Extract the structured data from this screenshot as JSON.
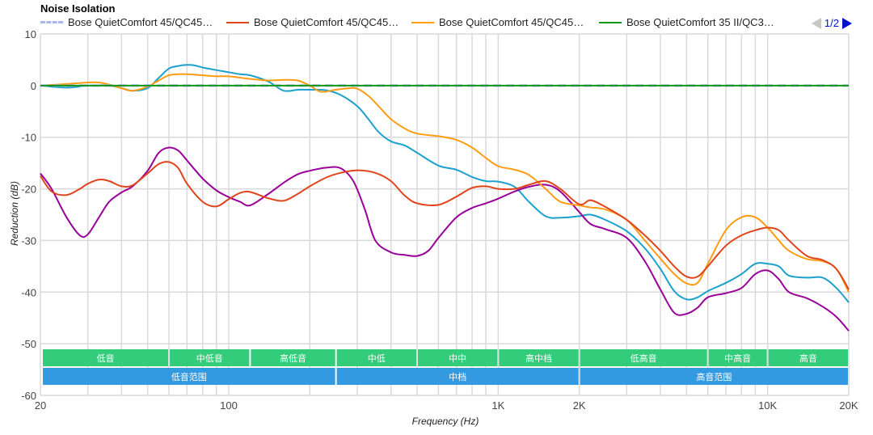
{
  "chart_data": {
    "type": "line",
    "title": "Noise Isolation",
    "xlabel": "Frequency (Hz)",
    "ylabel": "Reduction (dB)",
    "xscale": "log",
    "xlim": [
      20,
      20000
    ],
    "ylim": [
      -60,
      10
    ],
    "grid": true,
    "legend_position": "top",
    "y_ticks": [
      10,
      0,
      -10,
      -20,
      -30,
      -40,
      -50,
      -60
    ],
    "y_tick_labels": [
      "10",
      "0",
      "-10",
      "-20",
      "-30",
      "-40",
      "-50",
      "-60"
    ],
    "x_ticks": [
      20,
      100,
      1000,
      2000,
      10000,
      20000
    ],
    "x_tick_labels": [
      "20",
      "100",
      "1K",
      "2K",
      "10K",
      "20K"
    ],
    "x_gridlines": [
      20,
      30,
      40,
      50,
      60,
      70,
      80,
      90,
      100,
      200,
      300,
      400,
      500,
      600,
      700,
      800,
      900,
      1000,
      2000,
      3000,
      4000,
      5000,
      6000,
      7000,
      8000,
      9000,
      10000,
      20000
    ],
    "pager": {
      "label": "1/2",
      "page": 1,
      "pages": 2
    },
    "series": [
      {
        "name": "Bose QuietComfort 45/QC45…",
        "color": "#aab8f0",
        "dashed": true,
        "x": [
          20,
          20000
        ],
        "y": [
          0,
          0
        ]
      },
      {
        "name": "Bose QuietComfort 45/QC45…",
        "color": "#e0441a",
        "dashed": false,
        "x": [
          20,
          22,
          25,
          28,
          30,
          33,
          36,
          40,
          44,
          50,
          55,
          60,
          65,
          70,
          80,
          90,
          100,
          110,
          120,
          140,
          160,
          180,
          200,
          230,
          260,
          300,
          350,
          400,
          450,
          500,
          600,
          700,
          800,
          900,
          1000,
          1150,
          1300,
          1500,
          1700,
          2000,
          2200,
          2500,
          3000,
          3500,
          4000,
          4500,
          5000,
          5500,
          6000,
          7000,
          8000,
          9000,
          10000,
          11000,
          12000,
          14000,
          16000,
          18000,
          20000
        ],
        "y": [
          -17.5,
          -20.5,
          -21.2,
          -20,
          -19,
          -18.2,
          -18.5,
          -19.5,
          -19.3,
          -17,
          -15.2,
          -14.8,
          -16,
          -19,
          -22.5,
          -23.4,
          -22,
          -20.8,
          -20.6,
          -21.8,
          -22.3,
          -21,
          -19.5,
          -17.8,
          -16.9,
          -16.4,
          -16.9,
          -18.5,
          -21.3,
          -22.8,
          -23.1,
          -21.5,
          -19.8,
          -19.5,
          -20,
          -20,
          -19.2,
          -18.5,
          -20,
          -23,
          -22.2,
          -23.5,
          -26,
          -29,
          -32,
          -35,
          -37,
          -37,
          -35,
          -31,
          -29,
          -28,
          -27.5,
          -28,
          -30,
          -33,
          -33.8,
          -35.5,
          -39.5
        ]
      },
      {
        "name": "Bose QuietComfort 45/QC45…",
        "color": "#ff9c13",
        "dashed": false,
        "x": [
          20,
          25,
          30,
          33,
          36,
          40,
          44,
          50,
          55,
          60,
          65,
          70,
          80,
          90,
          100,
          120,
          140,
          160,
          180,
          200,
          220,
          250,
          280,
          300,
          330,
          360,
          400,
          450,
          500,
          600,
          700,
          800,
          900,
          1000,
          1150,
          1300,
          1500,
          1700,
          2000,
          2200,
          2500,
          3000,
          3500,
          4000,
          4500,
          5000,
          5500,
          6000,
          7000,
          8000,
          9000,
          10000,
          11000,
          12000,
          14000,
          16000,
          18000,
          20000
        ],
        "y": [
          0,
          0.3,
          0.6,
          0.6,
          0.2,
          -0.5,
          -1,
          -0.2,
          1,
          2,
          2.2,
          2.2,
          2,
          1.8,
          1.8,
          1.3,
          1,
          1.1,
          1,
          0,
          -1.2,
          -0.8,
          -0.5,
          -0.6,
          -2,
          -4,
          -6.5,
          -8.3,
          -9.3,
          -9.8,
          -10.5,
          -12,
          -14,
          -15.6,
          -16.3,
          -17.3,
          -20,
          -22.5,
          -23.2,
          -23.6,
          -24,
          -26,
          -30,
          -33.5,
          -36.5,
          -38.3,
          -38.2,
          -34.5,
          -28,
          -25.5,
          -25.5,
          -27.5,
          -30,
          -32,
          -33.6,
          -34,
          -35.5,
          -40
        ]
      },
      {
        "name": "Bose QuietComfort 35 II/QC3…",
        "color": "#109618",
        "dashed": false,
        "x": [
          20,
          20000
        ],
        "y": [
          0,
          0
        ]
      },
      {
        "name": "",
        "color": "#1ba1cc",
        "dashed": false,
        "x": [
          20,
          25,
          30,
          36,
          40,
          44,
          50,
          55,
          60,
          65,
          70,
          75,
          80,
          90,
          100,
          110,
          120,
          140,
          160,
          180,
          200,
          230,
          260,
          300,
          330,
          360,
          400,
          450,
          500,
          600,
          700,
          800,
          900,
          1000,
          1150,
          1300,
          1500,
          1700,
          2000,
          2200,
          2500,
          3000,
          3500,
          4000,
          4500,
          5000,
          5500,
          6000,
          7000,
          8000,
          9000,
          10000,
          11000,
          12000,
          14000,
          16000,
          18000,
          20000
        ],
        "y": [
          0,
          -0.4,
          0,
          0,
          -0.5,
          -1,
          -0.5,
          1.5,
          3.3,
          3.8,
          4,
          3.9,
          3.5,
          3,
          2.6,
          2.2,
          2,
          0.8,
          -1,
          -0.8,
          -0.8,
          -0.9,
          -1.8,
          -4,
          -6.5,
          -9,
          -10.8,
          -11.6,
          -13,
          -15.5,
          -16.3,
          -17.7,
          -18.5,
          -18.6,
          -19.6,
          -22.5,
          -25.3,
          -25.6,
          -25.3,
          -25,
          -26,
          -28.2,
          -31.5,
          -35.5,
          -39.8,
          -41.4,
          -41,
          -39.8,
          -38.2,
          -36.5,
          -34.5,
          -34.5,
          -35,
          -36.8,
          -37.2,
          -37.2,
          -39.2,
          -42
        ]
      },
      {
        "name": "",
        "color": "#990099",
        "dashed": false,
        "x": [
          20,
          22,
          25,
          28,
          30,
          33,
          36,
          40,
          44,
          50,
          55,
          60,
          65,
          70,
          80,
          90,
          100,
          110,
          120,
          140,
          160,
          180,
          200,
          230,
          260,
          290,
          320,
          350,
          400,
          450,
          500,
          550,
          600,
          700,
          800,
          900,
          1000,
          1150,
          1300,
          1500,
          1700,
          2000,
          2200,
          2500,
          3000,
          3500,
          4000,
          4500,
          5000,
          5500,
          6000,
          7000,
          8000,
          9000,
          10000,
          11000,
          12000,
          14000,
          16000,
          18000,
          20000
        ],
        "y": [
          -17,
          -20,
          -25.5,
          -29,
          -28.8,
          -25.5,
          -22.5,
          -20.7,
          -19.5,
          -16.5,
          -13,
          -12,
          -12.6,
          -14.5,
          -18,
          -20.3,
          -21.6,
          -22.5,
          -23.2,
          -21,
          -18.8,
          -17.2,
          -16.5,
          -15.9,
          -16,
          -18.5,
          -24,
          -30,
          -32.3,
          -32.8,
          -33,
          -32,
          -29.5,
          -25.5,
          -23.7,
          -22.8,
          -21.9,
          -20.5,
          -19.6,
          -19.2,
          -20.5,
          -24.5,
          -26.8,
          -27.8,
          -29.5,
          -34,
          -39.5,
          -44,
          -44.2,
          -43,
          -41,
          -40.2,
          -39.2,
          -36.5,
          -35.8,
          -37.5,
          -40,
          -41.2,
          -42.8,
          -44.8,
          -47.5
        ]
      }
    ],
    "bands": {
      "row1": [
        {
          "label": "低音",
          "from": 20,
          "to": 60
        },
        {
          "label": "中低音",
          "from": 60,
          "to": 120
        },
        {
          "label": "高低音",
          "from": 120,
          "to": 250
        },
        {
          "label": "中低",
          "from": 250,
          "to": 500
        },
        {
          "label": "中中",
          "from": 500,
          "to": 1000
        },
        {
          "label": "高中档",
          "from": 1000,
          "to": 2000
        },
        {
          "label": "低高音",
          "from": 2000,
          "to": 6000
        },
        {
          "label": "中高音",
          "from": 6000,
          "to": 10000
        },
        {
          "label": "高音",
          "from": 10000,
          "to": 20000
        }
      ],
      "row2": [
        {
          "label": "低音范围",
          "from": 20,
          "to": 250
        },
        {
          "label": "中档",
          "from": 250,
          "to": 2000
        },
        {
          "label": "高音范围",
          "from": 2000,
          "to": 20000
        }
      ],
      "row1_color": "#33cc7a",
      "row2_color": "#3399e0"
    }
  }
}
